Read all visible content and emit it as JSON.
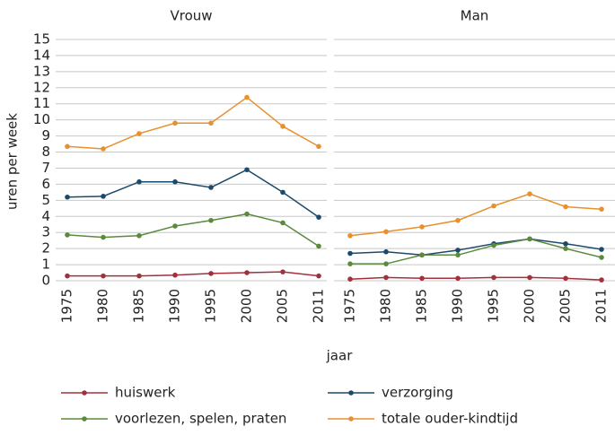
{
  "chart_data": [
    {
      "type": "line",
      "title": "Vrouw",
      "categories": [
        "1975",
        "1980",
        "1985",
        "1990",
        "1995",
        "2000",
        "2005",
        "2011"
      ],
      "ylim": [
        0,
        15
      ],
      "yticks": [
        0,
        1,
        2,
        3,
        4,
        5,
        6,
        7,
        8,
        9,
        10,
        11,
        12,
        13,
        14,
        15
      ],
      "grid": true,
      "series": [
        {
          "name": "huiswerk",
          "color": "#a3303c",
          "values": [
            0.3,
            0.3,
            0.3,
            0.35,
            0.45,
            0.5,
            0.55,
            0.3
          ]
        },
        {
          "name": "verzorging",
          "color": "#1c4a6b",
          "values": [
            5.2,
            5.25,
            6.15,
            6.15,
            5.8,
            6.9,
            5.5,
            3.95
          ]
        },
        {
          "name": "voorlezen, spelen, praten",
          "color": "#5b8a3c",
          "values": [
            2.85,
            2.7,
            2.8,
            3.4,
            3.75,
            4.15,
            3.6,
            2.15
          ]
        },
        {
          "name": "totale ouder-kindtijd",
          "color": "#e8902e",
          "values": [
            8.35,
            8.2,
            9.15,
            9.8,
            9.8,
            11.4,
            9.6,
            8.35
          ]
        }
      ]
    },
    {
      "type": "line",
      "title": "Man",
      "categories": [
        "1975",
        "1980",
        "1985",
        "1990",
        "1995",
        "2000",
        "2005",
        "2011"
      ],
      "ylim": [
        0,
        15
      ],
      "yticks": [
        0,
        1,
        2,
        3,
        4,
        5,
        6,
        7,
        8,
        9,
        10,
        11,
        12,
        13,
        14,
        15
      ],
      "grid": true,
      "series": [
        {
          "name": "huiswerk",
          "color": "#a3303c",
          "values": [
            0.1,
            0.2,
            0.15,
            0.15,
            0.2,
            0.2,
            0.15,
            0.05
          ]
        },
        {
          "name": "verzorging",
          "color": "#1c4a6b",
          "values": [
            1.7,
            1.8,
            1.6,
            1.9,
            2.3,
            2.6,
            2.3,
            1.95
          ]
        },
        {
          "name": "voorlezen, spelen, praten",
          "color": "#5b8a3c",
          "values": [
            1.05,
            1.05,
            1.6,
            1.6,
            2.2,
            2.6,
            2.0,
            1.45
          ]
        },
        {
          "name": "totale ouder-kindtijd",
          "color": "#e8902e",
          "values": [
            2.8,
            3.05,
            3.35,
            3.75,
            4.65,
            5.4,
            4.6,
            4.45
          ]
        }
      ]
    }
  ],
  "ylabel": "uren per week",
  "xlabel": "jaar"
}
